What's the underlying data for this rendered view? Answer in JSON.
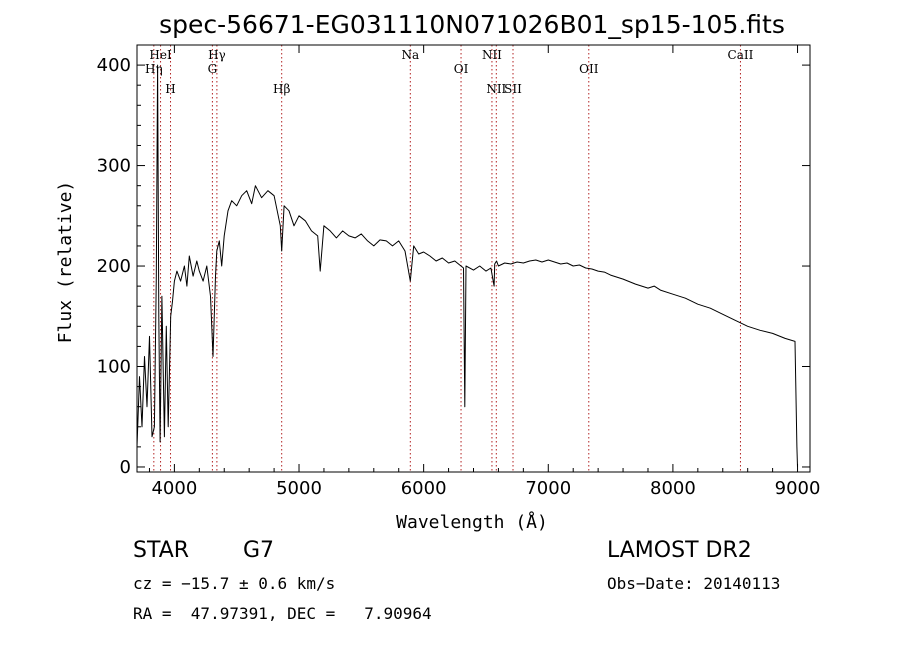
{
  "chart_data": {
    "type": "line",
    "title": "spec-56671-EG031110N071026B01_sp15-105.fits",
    "xlabel": "Wavelength (Å)",
    "ylabel": "Flux (relative)",
    "xlim": [
      3700,
      9100
    ],
    "ylim": [
      -5,
      420
    ],
    "x_ticks": [
      4000,
      5000,
      6000,
      7000,
      8000,
      9000
    ],
    "y_ticks": [
      0,
      100,
      200,
      300,
      400
    ],
    "grid": false,
    "line_color": "#000000",
    "marker_color": "#b22222",
    "series": [
      {
        "x": [
          3700,
          3720,
          3740,
          3760,
          3780,
          3800,
          3820,
          3840,
          3855,
          3865,
          3875,
          3885,
          3900,
          3920,
          3935,
          3950,
          3970,
          3985,
          4000,
          4020,
          4050,
          4080,
          4100,
          4120,
          4150,
          4180,
          4200,
          4230,
          4260,
          4290,
          4310,
          4330,
          4340,
          4360,
          4380,
          4400,
          4430,
          4460,
          4500,
          4540,
          4580,
          4620,
          4650,
          4700,
          4750,
          4800,
          4850,
          4861,
          4880,
          4920,
          4960,
          5000,
          5050,
          5100,
          5150,
          5170,
          5200,
          5250,
          5300,
          5350,
          5400,
          5450,
          5500,
          5550,
          5600,
          5650,
          5700,
          5750,
          5800,
          5850,
          5893,
          5920,
          5960,
          6000,
          6050,
          6100,
          6150,
          6200,
          6250,
          6300,
          6320,
          6330,
          6340,
          6400,
          6450,
          6500,
          6540,
          6565,
          6570,
          6585,
          6600,
          6650,
          6700,
          6750,
          6800,
          6850,
          6900,
          6950,
          7000,
          7050,
          7100,
          7150,
          7200,
          7250,
          7300,
          7350,
          7400,
          7450,
          7500,
          7600,
          7700,
          7800,
          7850,
          7900,
          8000,
          8100,
          8200,
          8300,
          8400,
          8500,
          8600,
          8700,
          8800,
          8900,
          8980,
          8995,
          9000
        ],
        "y": [
          20,
          90,
          40,
          110,
          60,
          130,
          30,
          40,
          190,
          400,
          150,
          25,
          170,
          30,
          140,
          40,
          150,
          165,
          185,
          195,
          185,
          200,
          180,
          210,
          190,
          205,
          195,
          185,
          200,
          170,
          110,
          190,
          215,
          225,
          200,
          230,
          255,
          265,
          260,
          270,
          275,
          262,
          280,
          268,
          275,
          270,
          240,
          215,
          260,
          255,
          240,
          250,
          245,
          235,
          230,
          195,
          240,
          235,
          228,
          235,
          230,
          228,
          232,
          225,
          220,
          226,
          225,
          220,
          225,
          215,
          185,
          220,
          212,
          214,
          210,
          205,
          208,
          203,
          205,
          200,
          198,
          60,
          200,
          196,
          200,
          195,
          198,
          180,
          202,
          205,
          200,
          203,
          202,
          204,
          203,
          205,
          206,
          204,
          206,
          204,
          202,
          203,
          200,
          201,
          198,
          197,
          195,
          194,
          191,
          187,
          182,
          178,
          180,
          176,
          172,
          168,
          162,
          158,
          152,
          146,
          140,
          136,
          133,
          128,
          125,
          20,
          0
        ]
      }
    ],
    "spectral_lines": [
      {
        "label": "HeI",
        "wavelength": 3889
      },
      {
        "label": "Hη",
        "wavelength": 3835
      },
      {
        "label": "H",
        "wavelength": 3969
      },
      {
        "label": "Hγ",
        "wavelength": 4341
      },
      {
        "label": "G",
        "wavelength": 4305
      },
      {
        "label": "Hβ",
        "wavelength": 4861
      },
      {
        "label": "Na",
        "wavelength": 5893
      },
      {
        "label": "OI",
        "wavelength": 6300
      },
      {
        "label": "NII",
        "wavelength": 6583
      },
      {
        "label": "NII",
        "wavelength": 6548
      },
      {
        "label": "OII",
        "wavelength": 7325
      },
      {
        "label": "SII",
        "wavelength": 6717
      },
      {
        "label": "CaII",
        "wavelength": 8542
      }
    ]
  },
  "info": {
    "object_type": "STAR",
    "subclass": "G7",
    "survey": "LAMOST DR2",
    "cz": "cz = −15.7 ± 0.6 km/s",
    "obs_date": "Obs−Date: 20140113",
    "coords": "RA =  47.97391, DEC =   7.90964"
  }
}
